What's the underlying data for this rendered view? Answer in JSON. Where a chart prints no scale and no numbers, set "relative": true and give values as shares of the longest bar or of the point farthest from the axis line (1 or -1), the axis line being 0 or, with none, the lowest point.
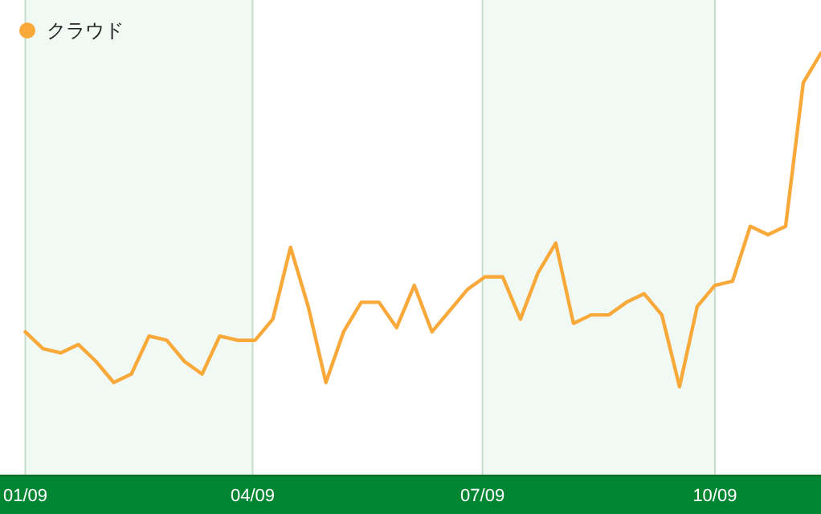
{
  "chart_data": {
    "type": "line",
    "relative": true,
    "grid": "x",
    "legend": "top left",
    "x": [
      "2009-01-01",
      "2009-01-08",
      "2009-01-15",
      "2009-01-22",
      "2009-01-29",
      "2009-02-05",
      "2009-02-12",
      "2009-02-19",
      "2009-02-26",
      "2009-03-05",
      "2009-03-12",
      "2009-03-19",
      "2009-03-26",
      "2009-04-02",
      "2009-04-09",
      "2009-04-16",
      "2009-04-23",
      "2009-04-30",
      "2009-05-07",
      "2009-05-14",
      "2009-05-21",
      "2009-05-28",
      "2009-06-04",
      "2009-06-11",
      "2009-06-18",
      "2009-06-25",
      "2009-07-02",
      "2009-07-09",
      "2009-07-16",
      "2009-07-23",
      "2009-07-30",
      "2009-08-06",
      "2009-08-13",
      "2009-08-20",
      "2009-08-27",
      "2009-09-03",
      "2009-09-10",
      "2009-09-17",
      "2009-09-24",
      "2009-10-01",
      "2009-10-08",
      "2009-10-15",
      "2009-10-22",
      "2009-10-29",
      "2009-11-05",
      "2009-11-12"
    ],
    "xlim": [
      "2008-12-22",
      "2009-11-12"
    ],
    "xticks": [
      {
        "value": "2009-01-01",
        "label": "01/09"
      },
      {
        "value": "2009-04-01",
        "label": "04/09"
      },
      {
        "value": "2009-07-01",
        "label": "07/09"
      },
      {
        "value": "2009-10-01",
        "label": "10/09"
      }
    ],
    "bands": [
      {
        "axis": "x",
        "from": "2009-01-01",
        "to": "2009-04-01",
        "color": "#f0f9f3"
      },
      {
        "axis": "x",
        "from": "2009-07-01",
        "to": "2009-10-01",
        "color": "#f0f9f3"
      }
    ],
    "series": [
      {
        "name": "クラウド",
        "color": "#f9a83a",
        "values": [
          0.34,
          0.3,
          0.29,
          0.31,
          0.27,
          0.22,
          0.24,
          0.33,
          0.32,
          0.27,
          0.24,
          0.33,
          0.32,
          0.32,
          0.37,
          0.54,
          0.4,
          0.22,
          0.34,
          0.41,
          0.41,
          0.35,
          0.45,
          0.34,
          0.39,
          0.44,
          0.47,
          0.47,
          0.37,
          0.48,
          0.55,
          0.36,
          0.38,
          0.38,
          0.41,
          0.43,
          0.38,
          0.21,
          0.4,
          0.45,
          0.46,
          0.59,
          0.57,
          0.59,
          0.93,
          1
        ]
      }
    ]
  }
}
